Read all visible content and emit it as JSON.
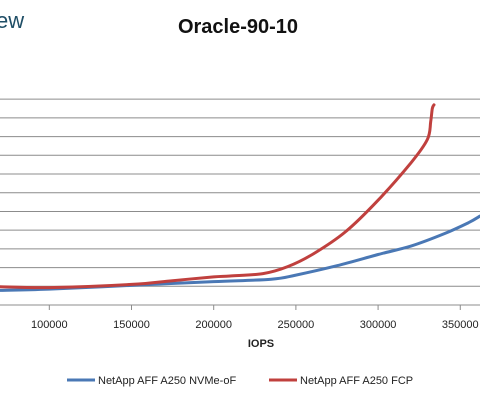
{
  "brand": {
    "text": "ew",
    "color": "#1f4e66"
  },
  "chart_data": {
    "type": "line",
    "title": "Oracle-90-10",
    "xlabel": "IOPS",
    "ylabel": "",
    "xlim": [
      70000,
      362000
    ],
    "ylim": [
      0,
      13.2
    ],
    "grid": true,
    "legend_position": "bottom",
    "x_ticks": [
      "100000",
      "150000",
      "200000",
      "250000",
      "300000",
      "350000"
    ],
    "x_tick_values": [
      100000,
      150000,
      200000,
      250000,
      300000,
      350000
    ],
    "y_gridlines": [
      1,
      2,
      3,
      4,
      5,
      6,
      7,
      8,
      9,
      10,
      11
    ],
    "series": [
      {
        "name": "NetApp AFF A250 NVMe-oF",
        "color": "#4a78b5",
        "x": [
          70000,
          100000,
          150000,
          200000,
          235000,
          250000,
          275000,
          300000,
          320000,
          340000,
          355000,
          362000
        ],
        "y": [
          0.78,
          0.85,
          1.05,
          1.25,
          1.38,
          1.6,
          2.1,
          2.7,
          3.15,
          3.8,
          4.4,
          4.75
        ]
      },
      {
        "name": "NetApp AFF A250 FCP",
        "color": "#c0403e",
        "x": [
          70000,
          100000,
          150000,
          175000,
          200000,
          210000,
          230000,
          245000,
          260000,
          280000,
          300000,
          320000,
          330000,
          332000,
          333000,
          334000
        ],
        "y": [
          0.98,
          0.93,
          1.1,
          1.3,
          1.5,
          1.55,
          1.68,
          2.05,
          2.7,
          3.9,
          5.6,
          7.6,
          8.85,
          9.8,
          10.5,
          10.7
        ]
      }
    ]
  }
}
